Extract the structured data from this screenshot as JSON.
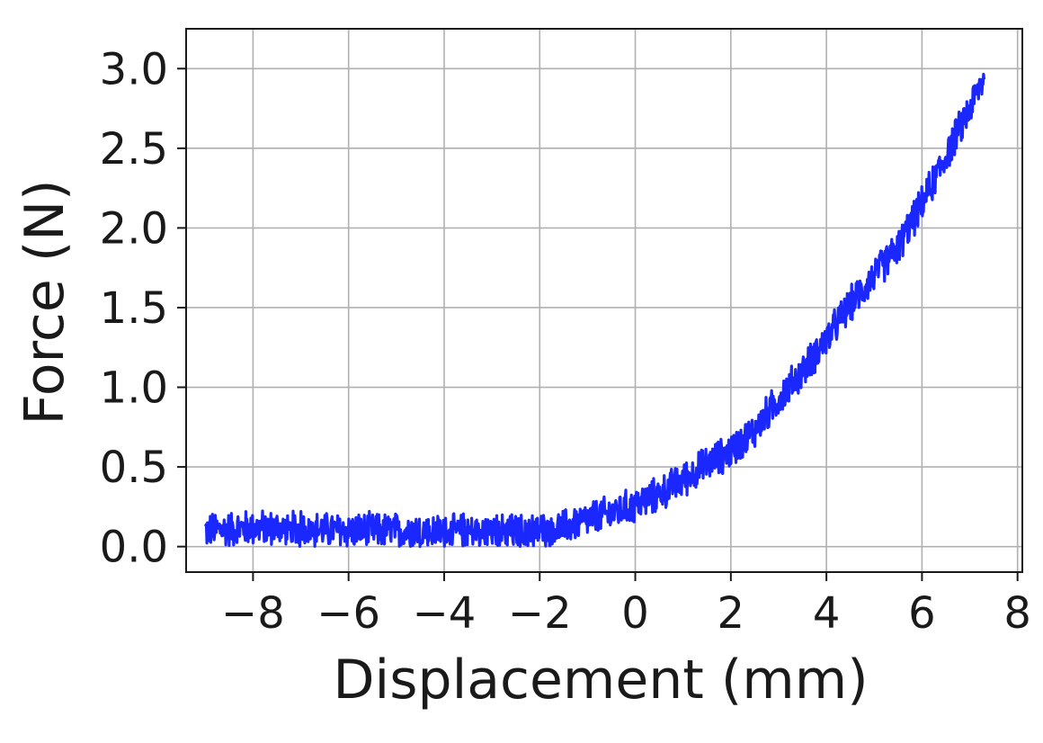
{
  "chart_data": {
    "type": "line",
    "title": "",
    "xlabel": "Displacement (mm)",
    "ylabel": "Force (N)",
    "xlim": [
      -9.4,
      8.1
    ],
    "ylim": [
      -0.16,
      3.25
    ],
    "xticks": [
      -8,
      -6,
      -4,
      -2,
      0,
      2,
      4,
      6,
      8
    ],
    "yticks": [
      0.0,
      0.5,
      1.0,
      1.5,
      2.0,
      2.5,
      3.0
    ],
    "xtick_labels": [
      "−8",
      "−6",
      "−4",
      "−2",
      "0",
      "2",
      "4",
      "6",
      "8"
    ],
    "ytick_labels": [
      "0.0",
      "0.5",
      "1.0",
      "1.5",
      "2.0",
      "2.5",
      "3.0"
    ],
    "grid": true,
    "series": [
      {
        "color": "#1a27ff",
        "noise": 0.18,
        "x": [
          -9.0,
          -8.0,
          -7.0,
          -6.0,
          -5.0,
          -4.0,
          -3.0,
          -2.0,
          -1.5,
          -1.0,
          -0.5,
          0.0,
          0.5,
          1.0,
          1.5,
          2.0,
          2.5,
          3.0,
          3.5,
          4.0,
          4.5,
          5.0,
          5.5,
          6.0,
          6.5,
          7.0,
          7.3
        ],
        "y": [
          0.1,
          0.12,
          0.11,
          0.1,
          0.1,
          0.09,
          0.09,
          0.1,
          0.12,
          0.17,
          0.21,
          0.26,
          0.33,
          0.42,
          0.52,
          0.6,
          0.73,
          0.93,
          1.1,
          1.3,
          1.52,
          1.7,
          1.88,
          2.15,
          2.45,
          2.75,
          2.95
        ]
      }
    ]
  }
}
